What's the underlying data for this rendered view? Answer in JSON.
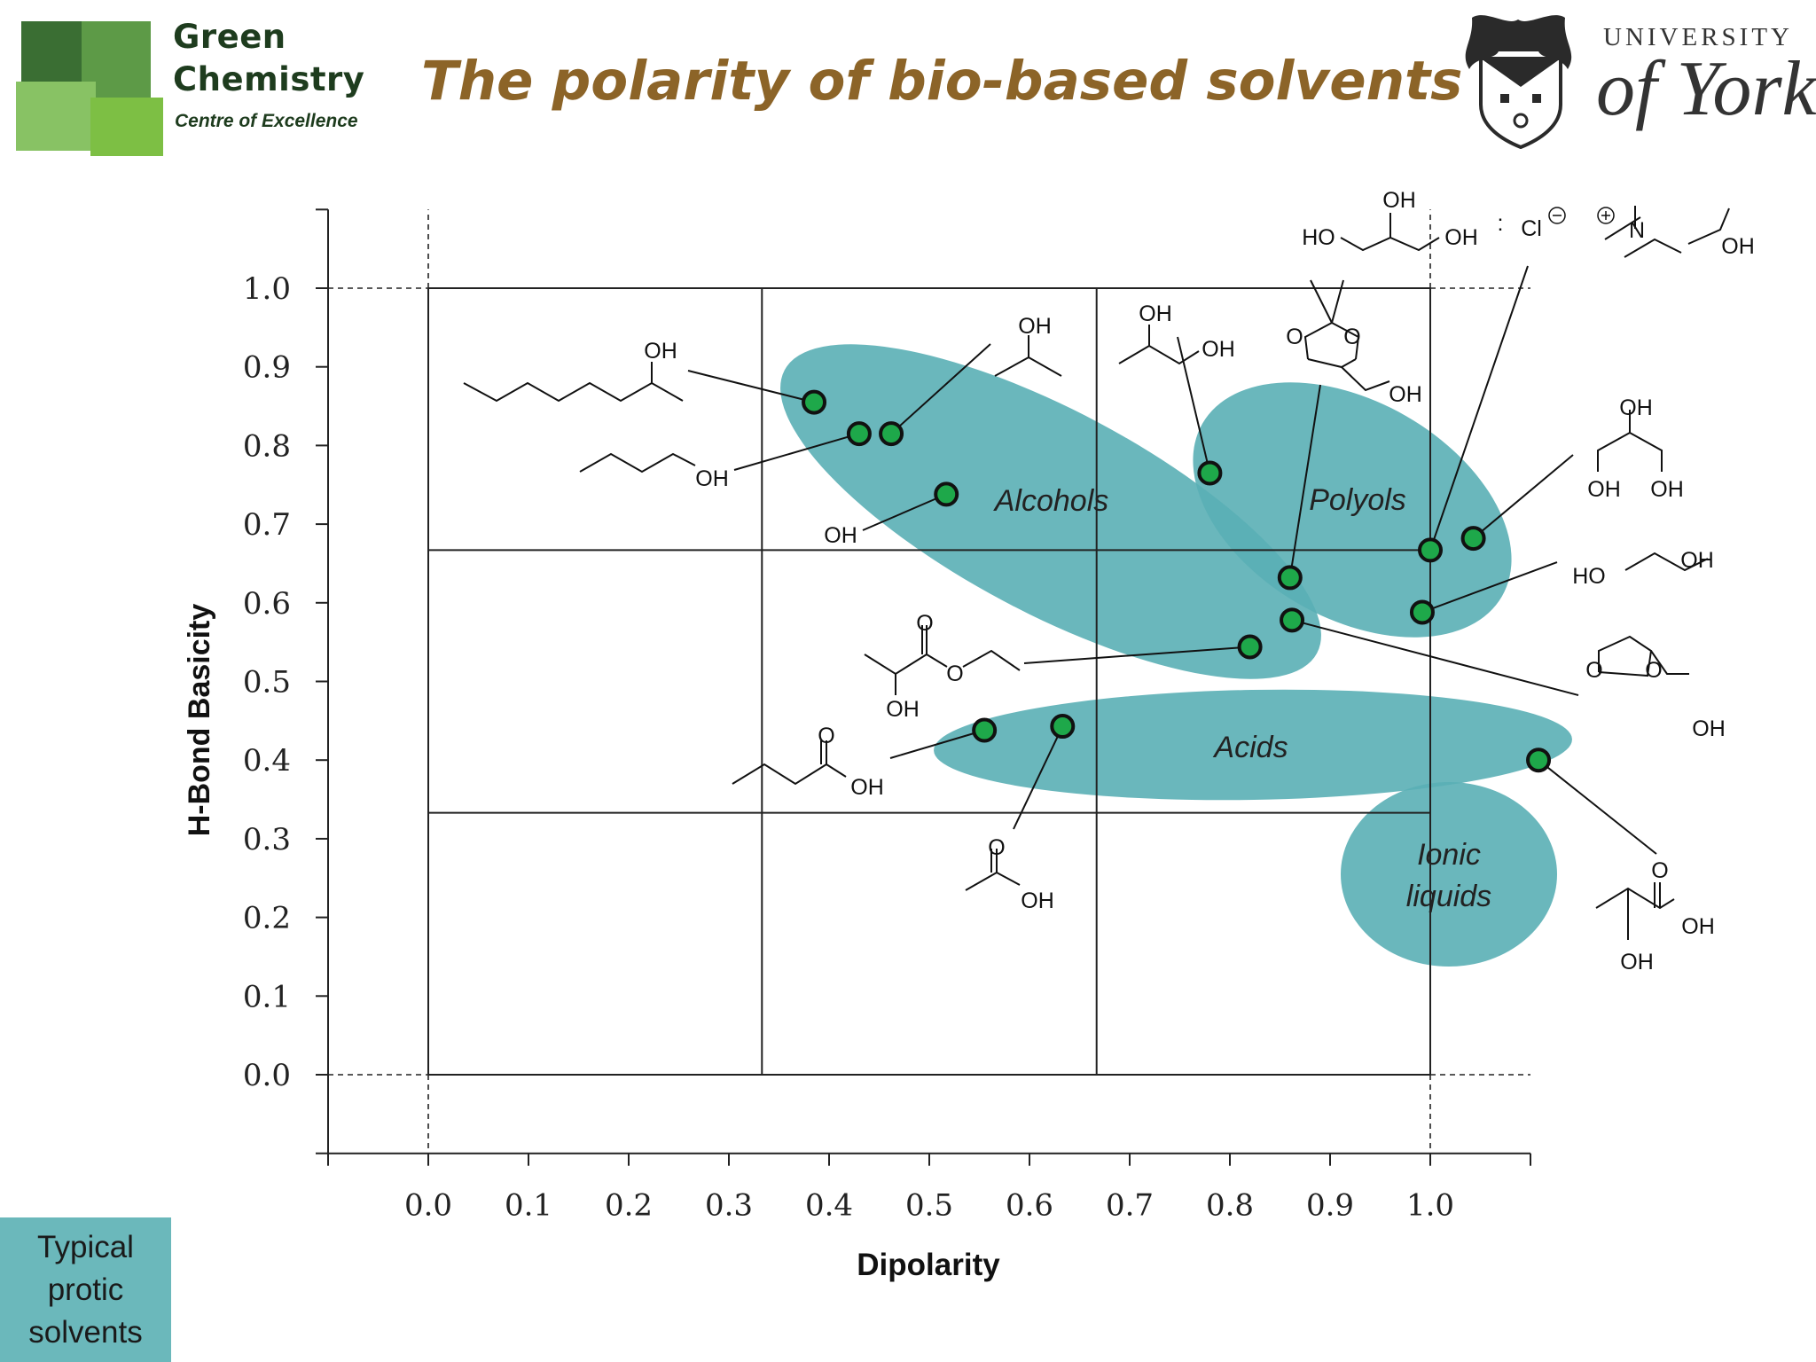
{
  "header": {
    "logo_left": {
      "line1": "Green",
      "line2": "Chemistry",
      "line3": "Centre of Excellence"
    },
    "title": "The polarity of bio-based solvents",
    "logo_right": {
      "line1": "UNIVERSITY",
      "line2": "of York"
    }
  },
  "colors": {
    "title": "#8c6428",
    "region_fill": "#5aafb5",
    "marker_fill": "#1ea84a",
    "marker_stroke": "#111111"
  },
  "chart_data": {
    "type": "scatter",
    "xlabel": "Dipolarity",
    "ylabel": "H-Bond Basicity",
    "xlim": [
      -0.1,
      1.1
    ],
    "ylim": [
      -0.1,
      1.1
    ],
    "x_ticks": [
      "0.0",
      "0.1",
      "0.2",
      "0.3",
      "0.4",
      "0.5",
      "0.6",
      "0.7",
      "0.8",
      "0.9",
      "1.0"
    ],
    "y_ticks": [
      "0.0",
      "0.1",
      "0.2",
      "0.3",
      "0.4",
      "0.5",
      "0.6",
      "0.7",
      "0.8",
      "0.9",
      "1.0"
    ],
    "grid_lines": [
      0,
      0.333,
      0.667,
      1.0
    ],
    "points": [
      {
        "x": 0.385,
        "y": 0.855,
        "label": "2-octanol"
      },
      {
        "x": 0.43,
        "y": 0.815,
        "label": "1-butanol"
      },
      {
        "x": 0.462,
        "y": 0.815,
        "label": "isopropanol"
      },
      {
        "x": 0.517,
        "y": 0.738,
        "label": "ethanol"
      },
      {
        "x": 0.78,
        "y": 0.765,
        "label": "1,2-propanediol"
      },
      {
        "x": 0.86,
        "y": 0.632,
        "label": "solketal"
      },
      {
        "x": 0.862,
        "y": 0.578,
        "label": "glycerol formal"
      },
      {
        "x": 0.82,
        "y": 0.544,
        "label": "ethyl lactate"
      },
      {
        "x": 0.555,
        "y": 0.438,
        "label": "butyric acid"
      },
      {
        "x": 0.633,
        "y": 0.443,
        "label": "acetic acid"
      },
      {
        "x": 1.0,
        "y": 0.667,
        "label": "choline chloride : glycerol"
      },
      {
        "x": 1.043,
        "y": 0.682,
        "label": "glycerol"
      },
      {
        "x": 0.992,
        "y": 0.588,
        "label": "ethylene glycol"
      },
      {
        "x": 1.108,
        "y": 0.4,
        "label": "lactic acid"
      }
    ],
    "regions": [
      {
        "name": "Alcohols"
      },
      {
        "name": "Polyols"
      },
      {
        "name": "Acids"
      },
      {
        "name": "Ionic liquids",
        "lines": [
          "Ionic",
          "liquids"
        ]
      }
    ],
    "structure_labels": {
      "octanol_oh": "OH",
      "butanol_oh": "OH",
      "ipa_oh": "OH",
      "ethanol_oh": "OH",
      "pg_oh1": "OH",
      "pg_oh2": "OH",
      "solketal_o1": "O",
      "solketal_o2": "O",
      "solketal_oh": "OH",
      "des_oh_top": "OH",
      "des_ho": "HO",
      "des_oh_right": "OH",
      "des_colon": ":",
      "des_cl": "Cl",
      "des_n": "N",
      "des_n_oh": "OH",
      "gly_oh_top": "OH",
      "gly_oh_l": "OH",
      "gly_oh_r": "OH",
      "eg_ho": "HO",
      "eg_oh": "OH",
      "el_o": "O",
      "el_o2": "O",
      "el_oh": "OH",
      "gf_o1": "O",
      "gf_o2": "O",
      "gf_oh": "OH",
      "ba_o": "O",
      "ba_oh": "OH",
      "aa_o": "O",
      "aa_oh": "OH",
      "la_o": "O",
      "la_oh1": "OH",
      "la_oh2": "OH"
    }
  },
  "side_box": {
    "text_line1": "Typical",
    "text_line2": "protic",
    "text_line3": "solvents"
  }
}
